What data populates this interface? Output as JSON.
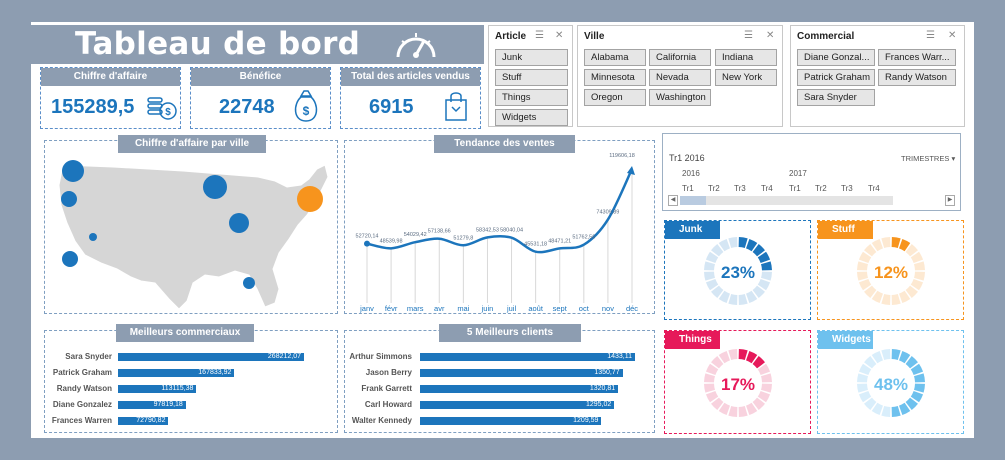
{
  "header": {
    "title": "Tableau de bord"
  },
  "kpis": [
    {
      "label": "Chiffre d'affaire",
      "value": "155289,5",
      "icon": "coins-dollar-icon"
    },
    {
      "label": "Bénéfice",
      "value": "22748",
      "icon": "money-bag-icon"
    },
    {
      "label": "Total des articles vendus",
      "value": "6915",
      "icon": "shopping-bag-icon"
    }
  ],
  "slicers": {
    "article": {
      "title": "Article",
      "items": [
        "Junk",
        "Stuff",
        "Things",
        "Widgets"
      ]
    },
    "ville": {
      "title": "Ville",
      "items": [
        "Alabama",
        "California",
        "Indiana",
        "Minnesota",
        "Nevada",
        "New York",
        "Oregon",
        "Washington"
      ]
    },
    "commercial": {
      "title": "Commercial",
      "items": [
        "Diane Gonzal...",
        "Frances Warr...",
        "Patrick Graham",
        "Randy Watson",
        "Sara Snyder"
      ]
    }
  },
  "map": {
    "title": "Chiffre d'affaire par ville"
  },
  "trend": {
    "title": "Tendance des ventes",
    "chart_data": {
      "type": "line",
      "categories": [
        "janv",
        "févr",
        "mars",
        "avr",
        "mai",
        "juin",
        "juil",
        "août",
        "sept",
        "oct",
        "nov",
        "déc"
      ],
      "values": [
        52720.14,
        48539.98,
        54029.42,
        57138.66,
        51279.8,
        58342.53,
        58040.04,
        45531.18,
        48471.21,
        51762.56,
        74309.89,
        119606.18
      ],
      "labels": [
        "52720,14",
        "48539,98",
        "54029,42",
        "57138,66",
        "51279,8",
        "58342,53",
        "58040,04",
        "45531,18",
        "48471,21",
        "51762,56",
        "74309,89",
        "119606,18"
      ]
    }
  },
  "timeline": {
    "period": "Tr1 2016",
    "level": "TRIMESTRES",
    "years": [
      "2016",
      "2017"
    ],
    "quarters": [
      "Tr1",
      "Tr2",
      "Tr3",
      "Tr4",
      "Tr1",
      "Tr2",
      "Tr3",
      "Tr4"
    ]
  },
  "donuts": [
    {
      "label": "Junk",
      "pct": "23%",
      "value": 0.23,
      "color": "#1c75bc",
      "light": "#d5e6f4"
    },
    {
      "label": "Stuff",
      "pct": "12%",
      "value": 0.12,
      "color": "#f7941d",
      "light": "#fde9d2"
    },
    {
      "label": "Things",
      "pct": "17%",
      "value": 0.17,
      "color": "#e6195a",
      "light": "#f8d2de"
    },
    {
      "label": "Widgets",
      "pct": "48%",
      "value": 0.48,
      "color": "#6ec1ee",
      "light": "#d9eefb"
    }
  ],
  "top_sales": {
    "title": "Meilleurs commerciaux",
    "chart_data": {
      "type": "bar",
      "categories": [
        "Sara Snyder",
        "Patrick Graham",
        "Randy Watson",
        "Diane Gonzalez",
        "Frances Warren"
      ],
      "values": [
        268212.07,
        167833.92,
        113115.38,
        97819.18,
        72790.82
      ],
      "labels": [
        "268212,07",
        "167833,92",
        "113115,38",
        "97819,18",
        "72790,82"
      ]
    }
  },
  "top_clients": {
    "title": "5 Meilleurs clients",
    "chart_data": {
      "type": "bar",
      "categories": [
        "Arthur Simmons",
        "Jason Berry",
        "Frank Garrett",
        "Carl Howard",
        "Walter Kennedy"
      ],
      "values": [
        1433.11,
        1350.77,
        1320.81,
        1295.02,
        1209.59
      ],
      "labels": [
        "1433,11",
        "1350,77",
        "1320,81",
        "1295,02",
        "1209,59"
      ]
    }
  }
}
